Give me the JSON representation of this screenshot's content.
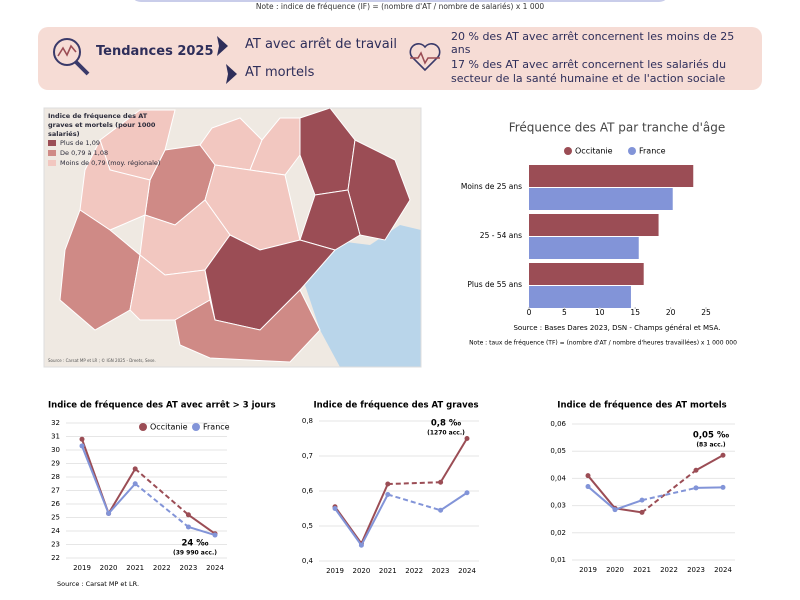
{
  "header": {
    "note": "Note : indice de fréquence (IF) = (nombre d'AT / nombre de salariés) x 1 000"
  },
  "banner": {
    "title": "Tendances 2025",
    "items": [
      "AT avec arrêt de travail",
      "AT mortels"
    ],
    "facts": [
      "20 % des AT avec arrêt concernent les moins de 25 ans",
      "17 % des AT avec arrêt concernent les salariés du secteur de la santé humaine et de l'action sociale"
    ]
  },
  "map": {
    "title": "Indice de fréquence des AT graves et mortels (pour 1000 salariés)",
    "legend": [
      {
        "label": "Plus de 1,09",
        "color": "#9b4d55"
      },
      {
        "label": "De 0,79 à 1,08",
        "color": "#cf8a86"
      },
      {
        "label": "Moins de 0,79 (moy. régionale)",
        "color": "#f2c7c0"
      }
    ],
    "source": "Source : Carsat MP et LR ; © IGN 2025 - Dreets, Sese."
  },
  "chart_data": [
    {
      "type": "hbar",
      "title": "Fréquence des AT par tranche d'âge",
      "categories": [
        "Moins de 25 ans",
        "25 - 54 ans",
        "Plus de 55 ans"
      ],
      "series": [
        {
          "name": "Occitanie",
          "color": "#9b4d55",
          "values": [
            23.2,
            18.3,
            16.2
          ]
        },
        {
          "name": "France",
          "color": "#8294d8",
          "values": [
            20.3,
            15.5,
            14.4
          ]
        }
      ],
      "xlim": [
        0,
        25
      ],
      "xticks": [
        0,
        5,
        10,
        15,
        20,
        25
      ],
      "source": "Source : Bases Dares 2023, DSN - Champs général et MSA.",
      "note": "Note : taux de fréquence (TF) = (nombre d'AT / nombre d'heures travaillées) x 1 000 000"
    },
    {
      "type": "line",
      "title": "Indice de fréquence des AT avec arrêt > 3 jours",
      "categories": [
        "2019",
        "2020",
        "2021",
        "2022",
        "2023",
        "2024"
      ],
      "series": [
        {
          "name": "Occitanie",
          "color": "#9b4d55",
          "values": [
            30.8,
            25.3,
            28.6,
            null,
            25.2,
            23.8
          ]
        },
        {
          "name": "France",
          "color": "#8294d8",
          "values": [
            30.3,
            25.3,
            27.5,
            null,
            24.3,
            23.7
          ]
        }
      ],
      "ylim": [
        22,
        32
      ],
      "yticks": [
        22,
        23,
        24,
        25,
        26,
        27,
        28,
        29,
        30,
        31,
        32
      ],
      "grid": true,
      "annotation": [
        "24 ‰",
        "(39 990 acc.)"
      ],
      "source": "Source : Carsat MP et LR."
    },
    {
      "type": "line",
      "title": "Indice de fréquence des AT graves",
      "categories": [
        "2019",
        "2020",
        "2021",
        "2022",
        "2023",
        "2024"
      ],
      "series": [
        {
          "name": "Occitanie",
          "color": "#9b4d55",
          "values": [
            0.555,
            0.45,
            0.62,
            null,
            0.625,
            0.75
          ]
        },
        {
          "name": "France",
          "color": "#8294d8",
          "values": [
            0.55,
            0.445,
            0.59,
            null,
            0.545,
            0.595
          ]
        }
      ],
      "ylim": [
        0.4,
        0.8
      ],
      "yticks": [
        {
          "value": 0.4,
          "label": "0,4"
        },
        {
          "value": 0.5,
          "label": "0,5"
        },
        {
          "value": 0.6,
          "label": "0,6"
        },
        {
          "value": 0.7,
          "label": "0,7"
        },
        {
          "value": 0.8,
          "label": "0,8"
        }
      ],
      "grid": true,
      "annotation": [
        "0,8 ‰",
        "(1270 acc.)"
      ]
    },
    {
      "type": "line",
      "title": "Indice de fréquence des AT mortels",
      "categories": [
        "2019",
        "2020",
        "2021",
        "2022",
        "2023",
        "2024"
      ],
      "series": [
        {
          "name": "Occitanie",
          "color": "#9b4d55",
          "values": [
            0.041,
            0.029,
            0.0275,
            null,
            0.043,
            0.0485
          ]
        },
        {
          "name": "France",
          "color": "#8294d8",
          "values": [
            0.037,
            0.0285,
            0.032,
            null,
            0.0365,
            0.0367
          ]
        }
      ],
      "ylim": [
        0.01,
        0.06
      ],
      "yticks": [
        {
          "value": 0.01,
          "label": "0,01"
        },
        {
          "value": 0.02,
          "label": "0,02"
        },
        {
          "value": 0.03,
          "label": "0,03"
        },
        {
          "value": 0.04,
          "label": "0,04"
        },
        {
          "value": 0.05,
          "label": "0,05"
        },
        {
          "value": 0.06,
          "label": "0,06"
        }
      ],
      "grid": true,
      "annotation": [
        "0,05 ‰",
        "(83 acc.)"
      ]
    }
  ]
}
